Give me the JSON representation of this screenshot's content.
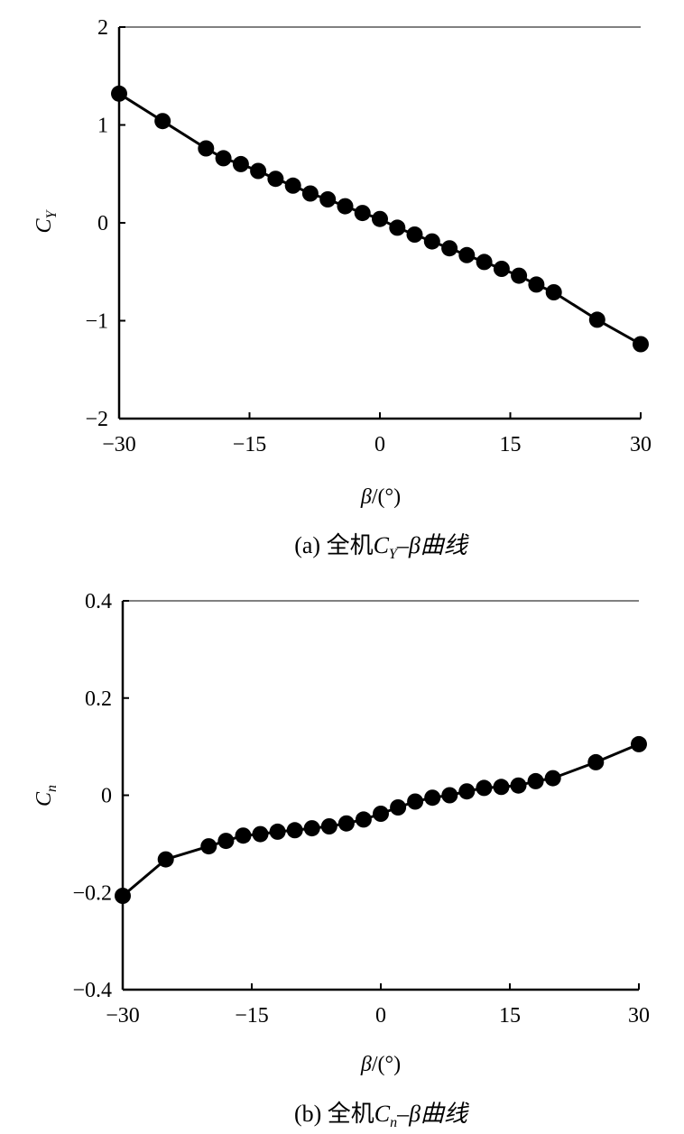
{
  "chart_data": [
    {
      "type": "line",
      "caption_prefix": "(a) 全机",
      "caption_symbol": "C",
      "caption_sub": "Y",
      "caption_suffix": "–β曲线",
      "xlabel_symbol": "β",
      "xlabel_unit": "/(°)",
      "ylabel_symbol": "C",
      "ylabel_sub": "Y",
      "xlim": [
        -30,
        30
      ],
      "ylim": [
        -2,
        2
      ],
      "xticks": [
        -30,
        -15,
        0,
        15,
        30
      ],
      "yticks": [
        -2,
        -1,
        0,
        1,
        2
      ],
      "xtick_labels": [
        "−30",
        "−15",
        "0",
        "15",
        "30"
      ],
      "ytick_labels": [
        "−2",
        "−1",
        "0",
        "1",
        "2"
      ],
      "series": [
        {
          "x": [
            -30,
            -25,
            -20,
            -18,
            -16,
            -14,
            -12,
            -10,
            -8,
            -6,
            -4,
            -2,
            0,
            2,
            4,
            6,
            8,
            10,
            12,
            14,
            16,
            18,
            20,
            25,
            30
          ],
          "y": [
            1.32,
            1.04,
            0.76,
            0.66,
            0.6,
            0.53,
            0.45,
            0.38,
            0.3,
            0.24,
            0.17,
            0.1,
            0.04,
            -0.05,
            -0.12,
            -0.19,
            -0.26,
            -0.33,
            -0.4,
            -0.47,
            -0.54,
            -0.63,
            -0.71,
            -0.99,
            -1.24
          ]
        }
      ]
    },
    {
      "type": "line",
      "caption_prefix": "(b) 全机",
      "caption_symbol": "C",
      "caption_sub": "n",
      "caption_suffix": "–β曲线",
      "xlabel_symbol": "β",
      "xlabel_unit": "/(°)",
      "ylabel_symbol": "C",
      "ylabel_sub": "n",
      "xlim": [
        -30,
        30
      ],
      "ylim": [
        -0.4,
        0.4
      ],
      "xticks": [
        -30,
        -15,
        0,
        15,
        30
      ],
      "yticks": [
        -0.4,
        -0.2,
        0,
        0.2,
        0.4
      ],
      "xtick_labels": [
        "−30",
        "−15",
        "0",
        "15",
        "30"
      ],
      "ytick_labels": [
        "−0.4",
        "−0.2",
        "0",
        "0.2",
        "0.4"
      ],
      "series": [
        {
          "x": [
            -30,
            -25,
            -20,
            -18,
            -16,
            -14,
            -12,
            -10,
            -8,
            -6,
            -4,
            -2,
            0,
            2,
            4,
            6,
            8,
            10,
            12,
            14,
            16,
            18,
            20,
            25,
            30
          ],
          "y": [
            -0.207,
            -0.132,
            -0.105,
            -0.094,
            -0.083,
            -0.08,
            -0.075,
            -0.072,
            -0.068,
            -0.064,
            -0.058,
            -0.05,
            -0.038,
            -0.025,
            -0.013,
            -0.005,
            0.0,
            0.008,
            0.015,
            0.017,
            0.02,
            0.029,
            0.035,
            0.068,
            0.105
          ]
        }
      ]
    }
  ]
}
